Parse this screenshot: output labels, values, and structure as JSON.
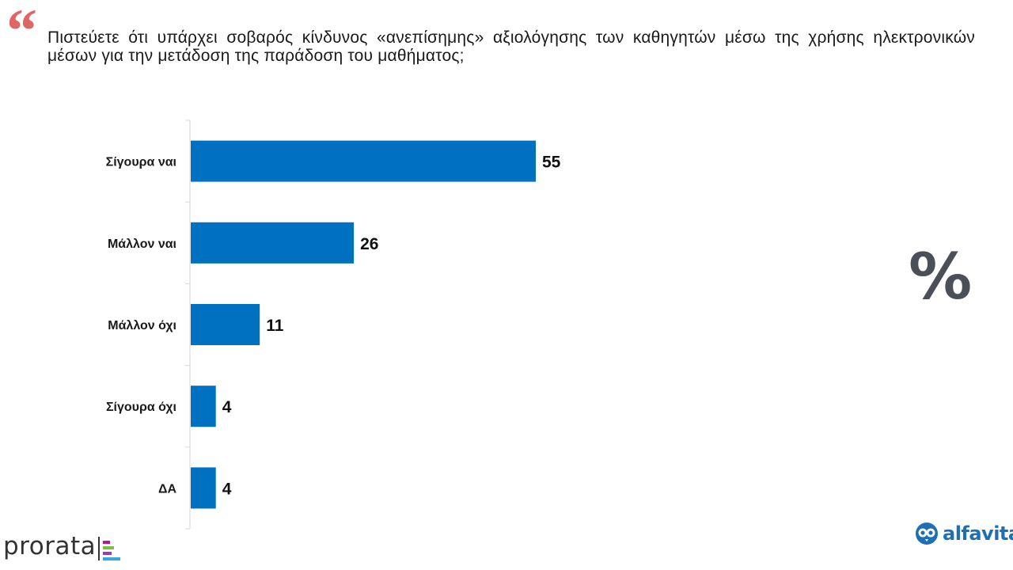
{
  "question": {
    "quote_glyph": "“",
    "text": "Πιστεύετε ότι υπάρχει σοβαρός κίνδυνος «ανεπίσημης» αξιολόγησης των καθηγητών μέσω της χρήσης ηλεκτρονικών μέσων για την μετάδοση της παράδοση του μαθήματος;"
  },
  "unit_symbol": "%",
  "logos": {
    "prorata": "prorata",
    "alfavita": "alfavita"
  },
  "colors": {
    "bar": "#0070c0",
    "quote": "#e06666",
    "axis": "#d9d9d9",
    "percent": "#4a4f58",
    "alfavita": "#1e6fb4"
  },
  "chart_data": {
    "type": "bar",
    "orientation": "horizontal",
    "categories": [
      "Σίγουρα ναι",
      "Μάλλον ναι",
      "Μάλλον όχι",
      "Σίγουρα όχι",
      "ΔΑ"
    ],
    "values": [
      55,
      26,
      11,
      4,
      4
    ],
    "data_labels": [
      "55",
      "26",
      "11",
      "4",
      "4"
    ],
    "xlim": [
      0,
      55
    ],
    "grid": false,
    "legend": "none"
  }
}
